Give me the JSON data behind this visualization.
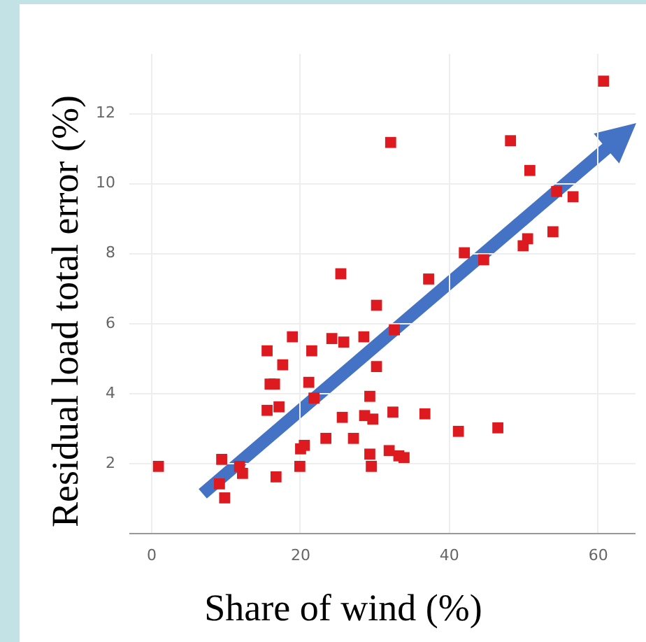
{
  "chart_data": {
    "type": "scatter",
    "xlabel": "Share of wind (%)",
    "ylabel": "Residual load total error (%)",
    "x": [
      1.0,
      9.5,
      9.2,
      9.9,
      11.9,
      12.3,
      16.8,
      15.6,
      16.0,
      16.6,
      15.6,
      17.2,
      17.7,
      19.0,
      20.0,
      20.1,
      20.6,
      21.2,
      21.6,
      21.9,
      23.5,
      24.3,
      25.5,
      25.7,
      25.9,
      27.2,
      28.6,
      28.7,
      29.4,
      29.4,
      29.6,
      29.8,
      30.3,
      30.3,
      32.2,
      32.0,
      32.5,
      32.7,
      33.3,
      34.0,
      36.8,
      37.3,
      41.3,
      42.1,
      44.7,
      46.6,
      48.3,
      50.0,
      50.6,
      50.9,
      54.0,
      54.5,
      56.7,
      60.8
    ],
    "series": [
      {
        "color": "#dc1a1f",
        "values": [
          1.9,
          2.1,
          1.4,
          1.0,
          1.9,
          1.7,
          1.6,
          5.2,
          4.25,
          4.25,
          3.5,
          3.6,
          4.8,
          5.6,
          1.9,
          2.4,
          2.5,
          4.3,
          5.2,
          3.85,
          2.7,
          5.55,
          7.4,
          3.3,
          5.45,
          2.7,
          5.6,
          3.35,
          3.9,
          2.25,
          1.9,
          3.25,
          6.5,
          4.75,
          11.15,
          2.35,
          3.45,
          5.8,
          2.2,
          2.15,
          3.4,
          7.25,
          2.9,
          8.0,
          7.8,
          3.0,
          11.2,
          8.2,
          8.4,
          10.35,
          8.6,
          9.75,
          9.6,
          12.9
        ]
      }
    ],
    "xlim": [
      -3,
      65
    ],
    "ylim": [
      0,
      13.7
    ],
    "xticks": [
      0,
      20,
      40,
      60
    ],
    "yticks": [
      2,
      4,
      6,
      8,
      10,
      12
    ],
    "grid": true,
    "marker": "square"
  }
}
